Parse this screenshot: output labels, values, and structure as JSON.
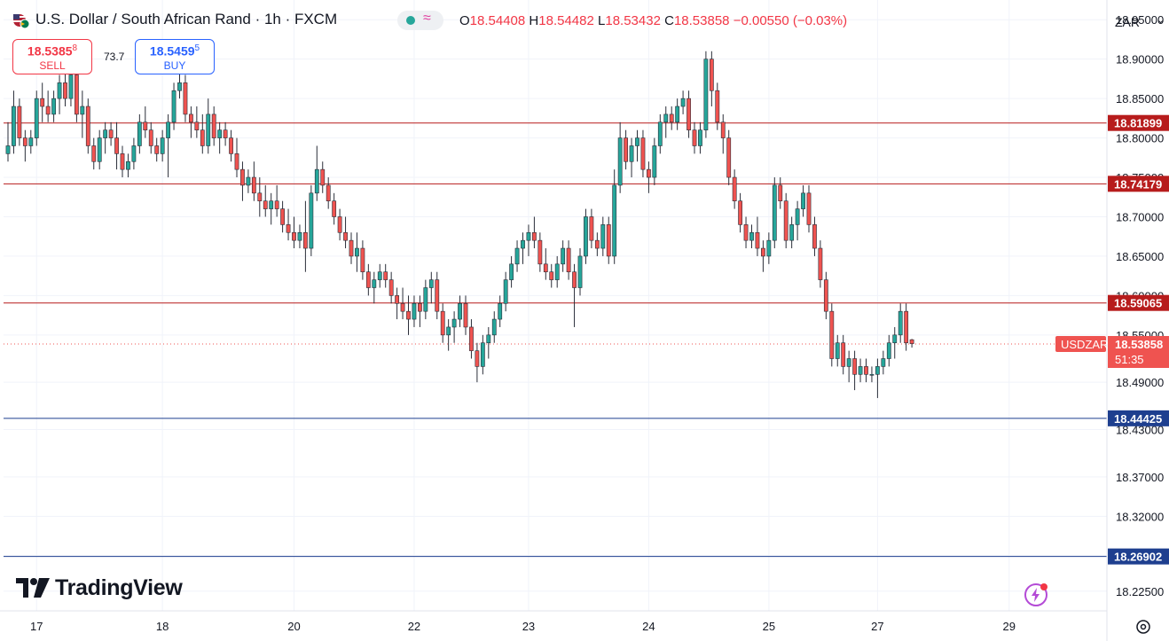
{
  "header": {
    "symbol_title": "U.S. Dollar / South African Rand · 1h · FXCM",
    "ohlc": {
      "o_label": "O",
      "o": "18.54408",
      "h_label": "H",
      "h": "18.54482",
      "l_label": "L",
      "l": "18.53432",
      "c_label": "C",
      "c": "18.53858",
      "change": "−0.00550 (−0.03%)"
    },
    "sell": {
      "price_main": "18.5385",
      "price_sup": "8",
      "label": "SELL"
    },
    "buy": {
      "price_main": "18.5459",
      "price_sup": "5",
      "label": "BUY"
    },
    "spread": "73.7",
    "currency": "ZAR"
  },
  "branding": {
    "logo_text": "TradingView"
  },
  "colors": {
    "up": "#26a69a",
    "down": "#ef5350",
    "resistance": "#b71c1c",
    "support": "#1e3f8f",
    "price_tag": "#ef5350"
  },
  "chart_data": {
    "type": "candlestick",
    "symbol": "USDZAR",
    "timeframe": "1h",
    "ylim": [
      18.2,
      18.975
    ],
    "y_ticks": [
      "18.95000",
      "18.90000",
      "18.85000",
      "18.80000",
      "18.75000",
      "18.70000",
      "18.65000",
      "18.60000",
      "18.55000",
      "18.49000",
      "18.43000",
      "18.37000",
      "18.32000",
      "18.27000",
      "18.22500"
    ],
    "x_ticks": [
      {
        "label": "17",
        "index": 5
      },
      {
        "label": "18",
        "index": 27
      },
      {
        "label": "20",
        "index": 50
      },
      {
        "label": "22",
        "index": 71
      },
      {
        "label": "23",
        "index": 91
      },
      {
        "label": "24",
        "index": 112
      },
      {
        "label": "25",
        "index": 133
      },
      {
        "label": "27",
        "index": 152
      },
      {
        "label": "29",
        "index": 175
      }
    ],
    "horizontal_lines": [
      {
        "value": 18.81899,
        "label": "18.81899",
        "kind": "resistance"
      },
      {
        "value": 18.74179,
        "label": "18.74179",
        "kind": "resistance"
      },
      {
        "value": 18.59065,
        "label": "18.59065",
        "kind": "resistance"
      },
      {
        "value": 18.44425,
        "label": "18.44425",
        "kind": "support"
      },
      {
        "value": 18.26902,
        "label": "18.26902",
        "kind": "support"
      }
    ],
    "last_price": {
      "value": 18.53858,
      "label": "18.53858",
      "symbol": "USDZAR",
      "countdown": "51:35"
    },
    "candles": [
      [
        18.78,
        18.82,
        18.77,
        18.79
      ],
      [
        18.79,
        18.86,
        18.78,
        18.84
      ],
      [
        18.84,
        18.85,
        18.79,
        18.8
      ],
      [
        18.8,
        18.81,
        18.77,
        18.79
      ],
      [
        18.79,
        18.81,
        18.78,
        18.8
      ],
      [
        18.8,
        18.86,
        18.79,
        18.85
      ],
      [
        18.85,
        18.87,
        18.82,
        18.84
      ],
      [
        18.84,
        18.86,
        18.82,
        18.83
      ],
      [
        18.83,
        18.86,
        18.82,
        18.85
      ],
      [
        18.85,
        18.88,
        18.83,
        18.87
      ],
      [
        18.87,
        18.89,
        18.84,
        18.85
      ],
      [
        18.85,
        18.89,
        18.84,
        18.88
      ],
      [
        18.88,
        18.89,
        18.82,
        18.83
      ],
      [
        18.83,
        18.86,
        18.8,
        18.84
      ],
      [
        18.84,
        18.85,
        18.78,
        18.79
      ],
      [
        18.79,
        18.8,
        18.76,
        18.77
      ],
      [
        18.77,
        18.81,
        18.76,
        18.8
      ],
      [
        18.8,
        18.82,
        18.78,
        18.81
      ],
      [
        18.81,
        18.82,
        18.79,
        18.8
      ],
      [
        18.8,
        18.82,
        18.76,
        18.78
      ],
      [
        18.78,
        18.79,
        18.75,
        18.76
      ],
      [
        18.76,
        18.78,
        18.75,
        18.77
      ],
      [
        18.77,
        18.8,
        18.76,
        18.79
      ],
      [
        18.79,
        18.83,
        18.78,
        18.82
      ],
      [
        18.82,
        18.84,
        18.8,
        18.81
      ],
      [
        18.81,
        18.82,
        18.78,
        18.79
      ],
      [
        18.79,
        18.8,
        18.77,
        18.78
      ],
      [
        18.78,
        18.81,
        18.77,
        18.8
      ],
      [
        18.8,
        18.83,
        18.75,
        18.82
      ],
      [
        18.82,
        18.87,
        18.81,
        18.86
      ],
      [
        18.86,
        18.89,
        18.85,
        18.87
      ],
      [
        18.87,
        18.88,
        18.82,
        18.83
      ],
      [
        18.83,
        18.84,
        18.8,
        18.82
      ],
      [
        18.82,
        18.84,
        18.8,
        18.81
      ],
      [
        18.81,
        18.83,
        18.78,
        18.79
      ],
      [
        18.79,
        18.85,
        18.78,
        18.83
      ],
      [
        18.83,
        18.84,
        18.79,
        18.8
      ],
      [
        18.8,
        18.82,
        18.78,
        18.81
      ],
      [
        18.81,
        18.82,
        18.79,
        18.8
      ],
      [
        18.8,
        18.81,
        18.77,
        18.78
      ],
      [
        18.78,
        18.8,
        18.75,
        18.76
      ],
      [
        18.76,
        18.77,
        18.72,
        18.74
      ],
      [
        18.74,
        18.76,
        18.73,
        18.75
      ],
      [
        18.75,
        18.77,
        18.72,
        18.73
      ],
      [
        18.73,
        18.75,
        18.7,
        18.72
      ],
      [
        18.72,
        18.74,
        18.7,
        18.71
      ],
      [
        18.71,
        18.73,
        18.69,
        18.72
      ],
      [
        18.72,
        18.74,
        18.7,
        18.71
      ],
      [
        18.71,
        18.72,
        18.68,
        18.69
      ],
      [
        18.69,
        18.71,
        18.67,
        18.68
      ],
      [
        18.68,
        18.7,
        18.66,
        18.67
      ],
      [
        18.67,
        18.69,
        18.66,
        18.68
      ],
      [
        18.68,
        18.72,
        18.63,
        18.66
      ],
      [
        18.66,
        18.74,
        18.65,
        18.73
      ],
      [
        18.73,
        18.79,
        18.72,
        18.76
      ],
      [
        18.76,
        18.77,
        18.73,
        18.74
      ],
      [
        18.74,
        18.75,
        18.71,
        18.72
      ],
      [
        18.72,
        18.73,
        18.69,
        18.7
      ],
      [
        18.7,
        18.71,
        18.67,
        18.68
      ],
      [
        18.68,
        18.7,
        18.66,
        18.67
      ],
      [
        18.67,
        18.68,
        18.64,
        18.65
      ],
      [
        18.65,
        18.68,
        18.63,
        18.66
      ],
      [
        18.66,
        18.67,
        18.62,
        18.63
      ],
      [
        18.63,
        18.64,
        18.6,
        18.61
      ],
      [
        18.61,
        18.63,
        18.59,
        18.62
      ],
      [
        18.62,
        18.64,
        18.61,
        18.63
      ],
      [
        18.63,
        18.64,
        18.61,
        18.62
      ],
      [
        18.62,
        18.63,
        18.59,
        18.6
      ],
      [
        18.6,
        18.61,
        18.57,
        18.59
      ],
      [
        18.59,
        18.61,
        18.57,
        18.58
      ],
      [
        18.58,
        18.6,
        18.55,
        18.57
      ],
      [
        18.57,
        18.6,
        18.56,
        18.59
      ],
      [
        18.59,
        18.6,
        18.56,
        18.58
      ],
      [
        18.58,
        18.62,
        18.57,
        18.61
      ],
      [
        18.61,
        18.63,
        18.59,
        18.62
      ],
      [
        18.62,
        18.63,
        18.57,
        18.58
      ],
      [
        18.58,
        18.59,
        18.54,
        18.55
      ],
      [
        18.55,
        18.57,
        18.53,
        18.56
      ],
      [
        18.56,
        18.58,
        18.54,
        18.57
      ],
      [
        18.57,
        18.6,
        18.56,
        18.59
      ],
      [
        18.59,
        18.6,
        18.55,
        18.56
      ],
      [
        18.56,
        18.57,
        18.52,
        18.53
      ],
      [
        18.53,
        18.54,
        18.49,
        18.51
      ],
      [
        18.51,
        18.55,
        18.5,
        18.54
      ],
      [
        18.54,
        18.56,
        18.52,
        18.55
      ],
      [
        18.55,
        18.58,
        18.54,
        18.57
      ],
      [
        18.57,
        18.6,
        18.56,
        18.59
      ],
      [
        18.59,
        18.63,
        18.58,
        18.62
      ],
      [
        18.62,
        18.65,
        18.61,
        18.64
      ],
      [
        18.64,
        18.67,
        18.63,
        18.66
      ],
      [
        18.66,
        18.68,
        18.64,
        18.67
      ],
      [
        18.67,
        18.69,
        18.65,
        18.68
      ],
      [
        18.68,
        18.7,
        18.66,
        18.67
      ],
      [
        18.67,
        18.68,
        18.63,
        18.64
      ],
      [
        18.64,
        18.66,
        18.62,
        18.63
      ],
      [
        18.63,
        18.64,
        18.61,
        18.62
      ],
      [
        18.62,
        18.65,
        18.61,
        18.64
      ],
      [
        18.64,
        18.67,
        18.63,
        18.66
      ],
      [
        18.66,
        18.67,
        18.62,
        18.63
      ],
      [
        18.63,
        18.64,
        18.56,
        18.61
      ],
      [
        18.61,
        18.66,
        18.6,
        18.65
      ],
      [
        18.65,
        18.71,
        18.64,
        18.7
      ],
      [
        18.7,
        18.71,
        18.66,
        18.67
      ],
      [
        18.67,
        18.68,
        18.65,
        18.66
      ],
      [
        18.66,
        18.7,
        18.65,
        18.69
      ],
      [
        18.69,
        18.7,
        18.64,
        18.65
      ],
      [
        18.65,
        18.76,
        18.64,
        18.74
      ],
      [
        18.74,
        18.82,
        18.73,
        18.8
      ],
      [
        18.8,
        18.81,
        18.76,
        18.77
      ],
      [
        18.77,
        18.8,
        18.75,
        18.79
      ],
      [
        18.79,
        18.81,
        18.77,
        18.8
      ],
      [
        18.8,
        18.81,
        18.75,
        18.76
      ],
      [
        18.76,
        18.77,
        18.73,
        18.75
      ],
      [
        18.75,
        18.8,
        18.74,
        18.79
      ],
      [
        18.79,
        18.83,
        18.78,
        18.82
      ],
      [
        18.82,
        18.84,
        18.8,
        18.83
      ],
      [
        18.83,
        18.84,
        18.81,
        18.82
      ],
      [
        18.82,
        18.85,
        18.81,
        18.84
      ],
      [
        18.84,
        18.86,
        18.83,
        18.85
      ],
      [
        18.85,
        18.86,
        18.8,
        18.81
      ],
      [
        18.81,
        18.82,
        18.78,
        18.79
      ],
      [
        18.79,
        18.82,
        18.78,
        18.81
      ],
      [
        18.81,
        18.91,
        18.8,
        18.9
      ],
      [
        18.9,
        18.91,
        18.84,
        18.86
      ],
      [
        18.86,
        18.87,
        18.81,
        18.82
      ],
      [
        18.82,
        18.83,
        18.78,
        18.8
      ],
      [
        18.8,
        18.81,
        18.74,
        18.75
      ],
      [
        18.75,
        18.76,
        18.71,
        18.72
      ],
      [
        18.72,
        18.73,
        18.68,
        18.69
      ],
      [
        18.69,
        18.7,
        18.66,
        18.67
      ],
      [
        18.67,
        18.69,
        18.66,
        18.68
      ],
      [
        18.68,
        18.7,
        18.65,
        18.66
      ],
      [
        18.66,
        18.67,
        18.63,
        18.65
      ],
      [
        18.65,
        18.68,
        18.64,
        18.67
      ],
      [
        18.67,
        18.75,
        18.66,
        18.74
      ],
      [
        18.74,
        18.75,
        18.71,
        18.72
      ],
      [
        18.72,
        18.73,
        18.66,
        18.67
      ],
      [
        18.67,
        18.7,
        18.66,
        18.69
      ],
      [
        18.69,
        18.72,
        18.67,
        18.71
      ],
      [
        18.71,
        18.74,
        18.7,
        18.73
      ],
      [
        18.73,
        18.74,
        18.68,
        18.69
      ],
      [
        18.69,
        18.7,
        18.65,
        18.66
      ],
      [
        18.66,
        18.67,
        18.61,
        18.62
      ],
      [
        18.62,
        18.63,
        18.57,
        18.58
      ],
      [
        18.58,
        18.59,
        18.51,
        18.52
      ],
      [
        18.52,
        18.55,
        18.51,
        18.54
      ],
      [
        18.54,
        18.55,
        18.5,
        18.51
      ],
      [
        18.51,
        18.53,
        18.49,
        18.52
      ],
      [
        18.52,
        18.53,
        18.48,
        18.5
      ],
      [
        18.5,
        18.52,
        18.49,
        18.51
      ],
      [
        18.51,
        18.52,
        18.49,
        18.5
      ],
      [
        18.5,
        18.51,
        18.49,
        18.5
      ],
      [
        18.5,
        18.52,
        18.47,
        18.51
      ],
      [
        18.51,
        18.53,
        18.5,
        18.52
      ],
      [
        18.52,
        18.55,
        18.51,
        18.54
      ],
      [
        18.54,
        18.56,
        18.52,
        18.55
      ],
      [
        18.55,
        18.59,
        18.54,
        18.58
      ],
      [
        18.58,
        18.59,
        18.53,
        18.54
      ],
      [
        18.544,
        18.545,
        18.534,
        18.539
      ]
    ]
  }
}
